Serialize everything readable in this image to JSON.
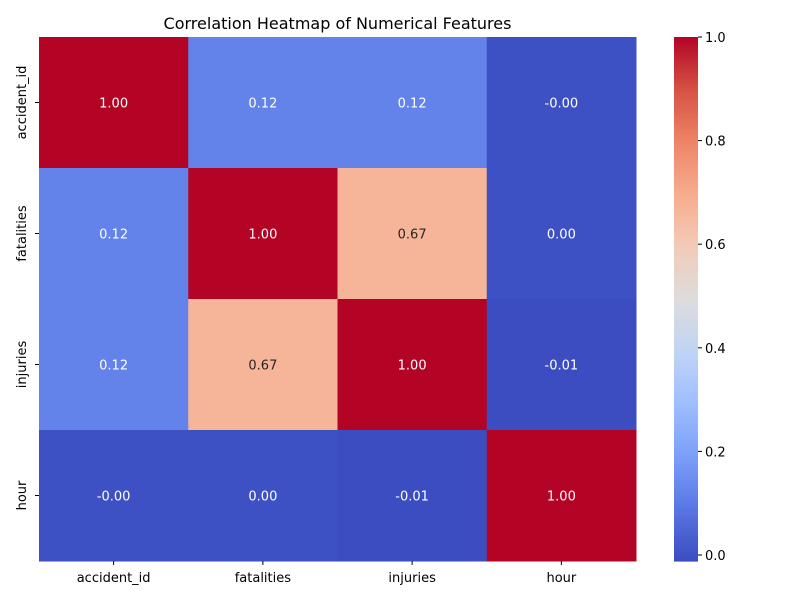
{
  "chart_data": {
    "type": "heatmap",
    "title": "Correlation Heatmap of Numerical Features",
    "xlabel": "",
    "ylabel": "",
    "x_categories": [
      "accident_id",
      "fatalities",
      "injuries",
      "hour"
    ],
    "y_categories": [
      "accident_id",
      "fatalities",
      "injuries",
      "hour"
    ],
    "values": [
      [
        1.0,
        0.12,
        0.12,
        -0.0
      ],
      [
        0.12,
        1.0,
        0.67,
        0.0
      ],
      [
        0.12,
        0.67,
        1.0,
        -0.01
      ],
      [
        -0.0,
        0.0,
        -0.01,
        1.0
      ]
    ],
    "annotations": [
      [
        "1.00",
        "0.12",
        "0.12",
        "-0.00"
      ],
      [
        "0.12",
        "1.00",
        "0.67",
        "0.00"
      ],
      [
        "0.12",
        "0.67",
        "1.00",
        "-0.01"
      ],
      [
        "-0.00",
        "0.00",
        "-0.01",
        "1.00"
      ]
    ],
    "colormap": "coolwarm",
    "colorbar": {
      "range": [
        -0.0116,
        1.0
      ],
      "ticks": [
        0.0,
        0.2,
        0.4,
        0.6,
        0.8,
        1.0
      ],
      "tick_labels": [
        "0.0",
        "0.2",
        "0.4",
        "0.6",
        "0.8",
        "1.0"
      ]
    },
    "grid": false,
    "legend": "colorbar-right"
  }
}
